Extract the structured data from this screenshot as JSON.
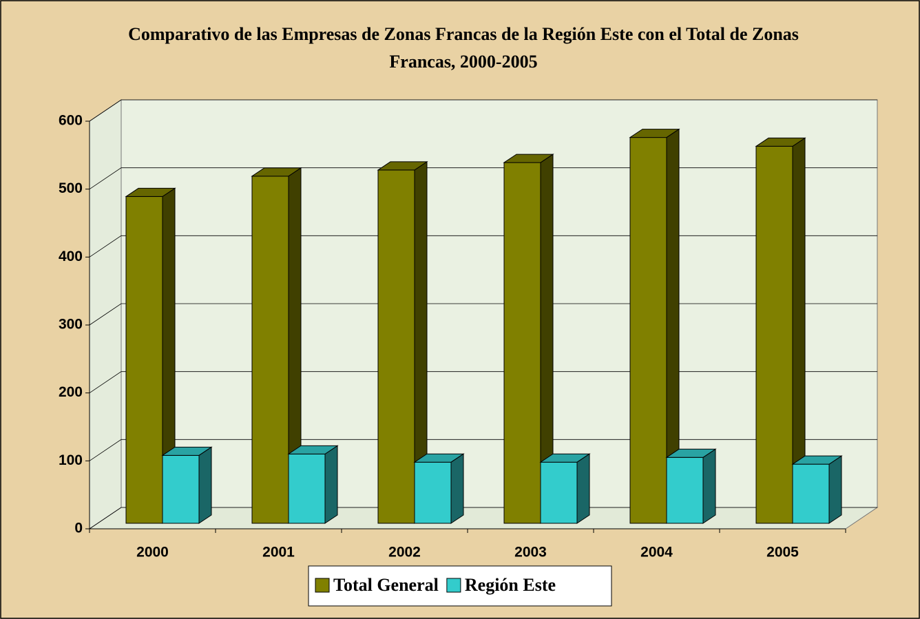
{
  "chart_data": {
    "type": "bar3d",
    "title": "Comparativo de las Empresas de Zonas Francas de la Región Este con el Total de Zonas Francas, 2000-2005",
    "categories": [
      "2000",
      "2001",
      "2002",
      "2003",
      "2004",
      "2005"
    ],
    "series": [
      {
        "name": "Total General",
        "color": "#808000",
        "values": [
          481,
          511,
          520,
          531,
          568,
          555
        ]
      },
      {
        "name": "Región Este",
        "color": "#33cccc",
        "values": [
          100,
          102,
          90,
          90,
          97,
          87
        ]
      }
    ],
    "ylim": [
      0,
      600
    ],
    "yticks": [
      0,
      100,
      200,
      300,
      400,
      500,
      600
    ],
    "grid": true,
    "legend": "bottom"
  }
}
